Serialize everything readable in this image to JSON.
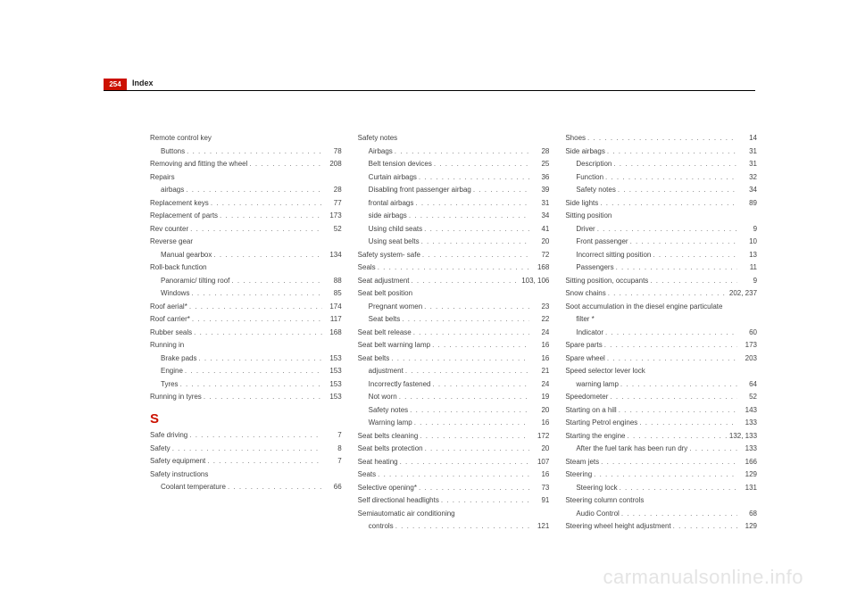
{
  "page_number": "254",
  "header_title": "Index",
  "section_letter": "S",
  "watermark": "carmanualsonline.info",
  "columns": [
    [
      {
        "type": "heading",
        "label": "Remote control key"
      },
      {
        "type": "sub",
        "label": "Buttons",
        "page": "78"
      },
      {
        "type": "top",
        "label": "Removing and fitting the wheel",
        "page": "208"
      },
      {
        "type": "heading",
        "label": "Repairs"
      },
      {
        "type": "sub",
        "label": "airbags",
        "page": "28"
      },
      {
        "type": "top",
        "label": "Replacement keys",
        "page": "77"
      },
      {
        "type": "top",
        "label": "Replacement of parts",
        "page": "173"
      },
      {
        "type": "top",
        "label": "Rev counter",
        "page": "52"
      },
      {
        "type": "heading",
        "label": "Reverse gear"
      },
      {
        "type": "sub",
        "label": "Manual gearbox",
        "page": "134"
      },
      {
        "type": "heading",
        "label": "Roll-back function"
      },
      {
        "type": "sub",
        "label": "Panoramic/ tilting roof",
        "page": "88"
      },
      {
        "type": "sub",
        "label": "Windows",
        "page": "85"
      },
      {
        "type": "top",
        "label": "Roof aerial*",
        "page": "174"
      },
      {
        "type": "top",
        "label": "Roof carrier*",
        "page": "117"
      },
      {
        "type": "top",
        "label": "Rubber seals",
        "page": "168"
      },
      {
        "type": "heading",
        "label": "Running in"
      },
      {
        "type": "sub",
        "label": "Brake pads",
        "page": "153"
      },
      {
        "type": "sub",
        "label": "Engine",
        "page": "153"
      },
      {
        "type": "sub",
        "label": "Tyres",
        "page": "153"
      },
      {
        "type": "top",
        "label": "Running in tyres",
        "page": "153"
      },
      {
        "type": "letter"
      },
      {
        "type": "top",
        "label": "Safe driving",
        "page": "7"
      },
      {
        "type": "top",
        "label": "Safety",
        "page": "8"
      },
      {
        "type": "top",
        "label": "Safety equipment",
        "page": "7"
      },
      {
        "type": "heading",
        "label": "Safety instructions"
      },
      {
        "type": "sub",
        "label": "Coolant temperature",
        "page": "66"
      }
    ],
    [
      {
        "type": "heading",
        "label": "Safety notes"
      },
      {
        "type": "sub",
        "label": "Airbags",
        "page": "28"
      },
      {
        "type": "sub",
        "label": "Belt tension devices",
        "page": "25"
      },
      {
        "type": "sub",
        "label": "Curtain airbags",
        "page": "36"
      },
      {
        "type": "sub",
        "label": "Disabling front passenger airbag",
        "page": "39"
      },
      {
        "type": "sub",
        "label": "frontal airbags",
        "page": "31"
      },
      {
        "type": "sub",
        "label": "side airbags",
        "page": "34"
      },
      {
        "type": "sub",
        "label": "Using child seats",
        "page": "41"
      },
      {
        "type": "sub",
        "label": "Using seat belts",
        "page": "20"
      },
      {
        "type": "top",
        "label": "Safety system- safe",
        "page": "72"
      },
      {
        "type": "top",
        "label": "Seals",
        "page": "168"
      },
      {
        "type": "top",
        "label": "Seat adjustment",
        "page": "103, 106"
      },
      {
        "type": "heading",
        "label": "Seat belt position"
      },
      {
        "type": "sub",
        "label": "Pregnant women",
        "page": "23"
      },
      {
        "type": "sub",
        "label": "Seat belts",
        "page": "22"
      },
      {
        "type": "top",
        "label": "Seat belt release",
        "page": "24"
      },
      {
        "type": "top",
        "label": "Seat belt warning lamp",
        "page": "16"
      },
      {
        "type": "top",
        "label": "Seat belts",
        "page": "16"
      },
      {
        "type": "sub",
        "label": "adjustment",
        "page": "21"
      },
      {
        "type": "sub",
        "label": "Incorrectly fastened",
        "page": "24"
      },
      {
        "type": "sub",
        "label": "Not worn",
        "page": "19"
      },
      {
        "type": "sub",
        "label": "Safety notes",
        "page": "20"
      },
      {
        "type": "sub",
        "label": "Warning lamp",
        "page": "16"
      },
      {
        "type": "top",
        "label": "Seat belts cleaning",
        "page": "172"
      },
      {
        "type": "top",
        "label": "Seat belts protection",
        "page": "20"
      },
      {
        "type": "top",
        "label": "Seat heating",
        "page": "107"
      },
      {
        "type": "top",
        "label": "Seats",
        "page": "16"
      },
      {
        "type": "top",
        "label": "Selective opening*",
        "page": "73"
      },
      {
        "type": "top",
        "label": "Self directional headlights",
        "page": "91"
      },
      {
        "type": "heading",
        "label": "Semiautomatic air conditioning"
      },
      {
        "type": "sub",
        "label": "controls",
        "page": "121"
      }
    ],
    [
      {
        "type": "top",
        "label": "Shoes",
        "page": "14"
      },
      {
        "type": "top",
        "label": "Side airbags",
        "page": "31"
      },
      {
        "type": "sub",
        "label": "Description",
        "page": "31"
      },
      {
        "type": "sub",
        "label": "Function",
        "page": "32"
      },
      {
        "type": "sub",
        "label": "Safety notes",
        "page": "34"
      },
      {
        "type": "top",
        "label": "Side lights",
        "page": "89"
      },
      {
        "type": "heading",
        "label": "Sitting position"
      },
      {
        "type": "sub",
        "label": "Driver",
        "page": "9"
      },
      {
        "type": "sub",
        "label": "Front passenger",
        "page": "10"
      },
      {
        "type": "sub",
        "label": "Incorrect sitting position",
        "page": "13"
      },
      {
        "type": "sub",
        "label": "Passengers",
        "page": "11"
      },
      {
        "type": "top",
        "label": "Sitting position, occupants",
        "page": "9"
      },
      {
        "type": "top",
        "label": "Snow chains",
        "page": "202, 237"
      },
      {
        "type": "heading",
        "label": "Soot accumulation in the diesel engine particulate"
      },
      {
        "type": "heading-sub",
        "label": "filter *"
      },
      {
        "type": "sub",
        "label": "Indicator",
        "page": "60"
      },
      {
        "type": "top",
        "label": "Spare parts",
        "page": "173"
      },
      {
        "type": "top",
        "label": "Spare wheel",
        "page": "203"
      },
      {
        "type": "heading",
        "label": "Speed selector lever lock"
      },
      {
        "type": "sub",
        "label": "warning lamp",
        "page": "64"
      },
      {
        "type": "top",
        "label": "Speedometer",
        "page": "52"
      },
      {
        "type": "top",
        "label": "Starting on a hill",
        "page": "143"
      },
      {
        "type": "top",
        "label": "Starting Petrol engines",
        "page": "133"
      },
      {
        "type": "top",
        "label": "Starting the engine",
        "page": "132, 133"
      },
      {
        "type": "sub",
        "label": "After the fuel tank has been run dry",
        "page": "133"
      },
      {
        "type": "top",
        "label": "Steam jets",
        "page": "166"
      },
      {
        "type": "top",
        "label": "Steering",
        "page": "129"
      },
      {
        "type": "sub",
        "label": "Steering lock",
        "page": "131"
      },
      {
        "type": "heading",
        "label": "Steering column controls"
      },
      {
        "type": "sub",
        "label": "Audio Control",
        "page": "68"
      },
      {
        "type": "top",
        "label": "Steering wheel height adjustment",
        "page": "129"
      }
    ]
  ]
}
